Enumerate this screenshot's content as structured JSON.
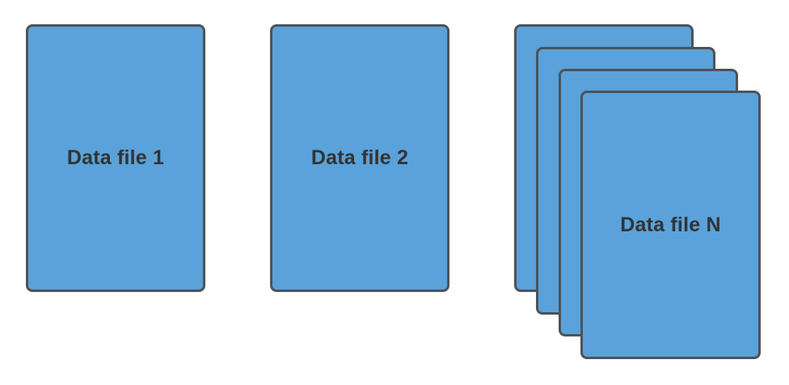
{
  "diagram": {
    "files": [
      {
        "label": "Data file 1"
      },
      {
        "label": "Data file 2"
      },
      {
        "label": "Data file N",
        "stacked": true
      }
    ]
  },
  "colors": {
    "card_fill": "#5aa2da",
    "card_border": "#4d5359",
    "label_text": "#333333",
    "background": "#ffffff"
  }
}
